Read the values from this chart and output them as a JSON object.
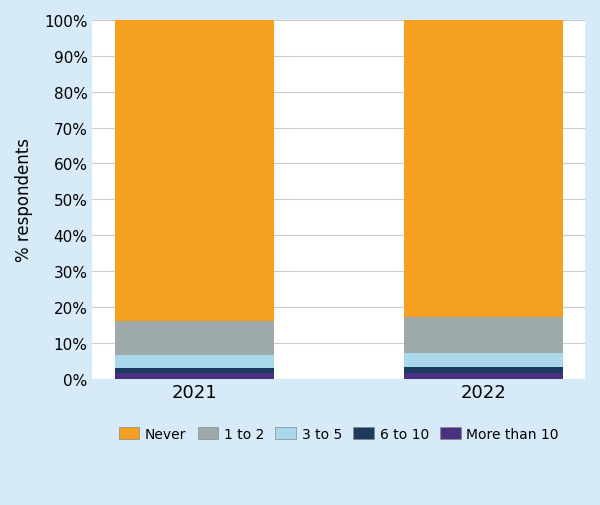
{
  "years": [
    "2021",
    "2022"
  ],
  "categories": [
    "More than 10",
    "6 to 10",
    "3 to 5",
    "1 to 2",
    "Never"
  ],
  "values": {
    "2021": [
      1.5,
      1.5,
      3.5,
      9.5,
      84.0
    ],
    "2022": [
      1.5,
      1.7,
      4.0,
      10.0,
      82.8
    ]
  },
  "colors": [
    "#4a3080",
    "#1c3a5e",
    "#a8d8ea",
    "#9eaaaa",
    "#f5a020"
  ],
  "legend_labels": [
    "Never",
    "1 to 2",
    "3 to 5",
    "6 to 10",
    "More than 10"
  ],
  "legend_colors": [
    "#f5a020",
    "#9eaaaa",
    "#a8d8ea",
    "#1c3a5e",
    "#4a3080"
  ],
  "ylabel": "% respondents",
  "ylim": [
    0,
    100
  ],
  "background_color": "#d6eaf8",
  "plot_background": "#ffffff",
  "bar_width": 0.55,
  "yticks": [
    0,
    10,
    20,
    30,
    40,
    50,
    60,
    70,
    80,
    90,
    100
  ],
  "ytick_labels": [
    "0%",
    "10%",
    "20%",
    "30%",
    "40%",
    "50%",
    "60%",
    "70%",
    "80%",
    "90%",
    "100%"
  ]
}
